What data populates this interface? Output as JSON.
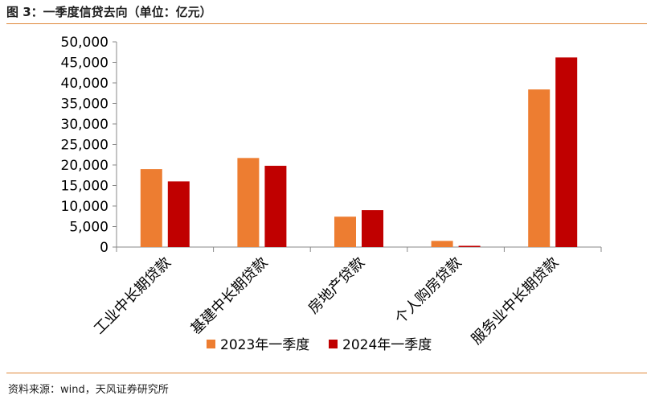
{
  "header": {
    "title": "图 3：一季度信贷去向（单位：亿元）"
  },
  "footer": {
    "source": "资料来源：wind，天风证券研究所"
  },
  "colors": {
    "series_2023": "#ed7d31",
    "series_2024": "#c00000",
    "rule": "#e0893a"
  },
  "chart_data": {
    "type": "bar",
    "title": "",
    "xlabel": "",
    "ylabel": "",
    "categories": [
      "工业中长期贷款",
      "基建中长期贷款",
      "房地产贷款",
      "个人购房贷款",
      "服务业中长期贷款"
    ],
    "series": [
      {
        "name": "2023年一季度",
        "values": [
          19000,
          21700,
          7400,
          1500,
          38400
        ]
      },
      {
        "name": "2024年一季度",
        "values": [
          16000,
          19800,
          9000,
          300,
          46200
        ]
      }
    ],
    "ylim": [
      0,
      50000
    ],
    "yticks": [
      0,
      5000,
      10000,
      15000,
      20000,
      25000,
      30000,
      35000,
      40000,
      45000,
      50000
    ],
    "ytick_labels": [
      "0",
      "5,000",
      "10,000",
      "15,000",
      "20,000",
      "25,000",
      "30,000",
      "35,000",
      "40,000",
      "45,000",
      "50,000"
    ],
    "legend_position": "bottom-center",
    "grid": false
  }
}
